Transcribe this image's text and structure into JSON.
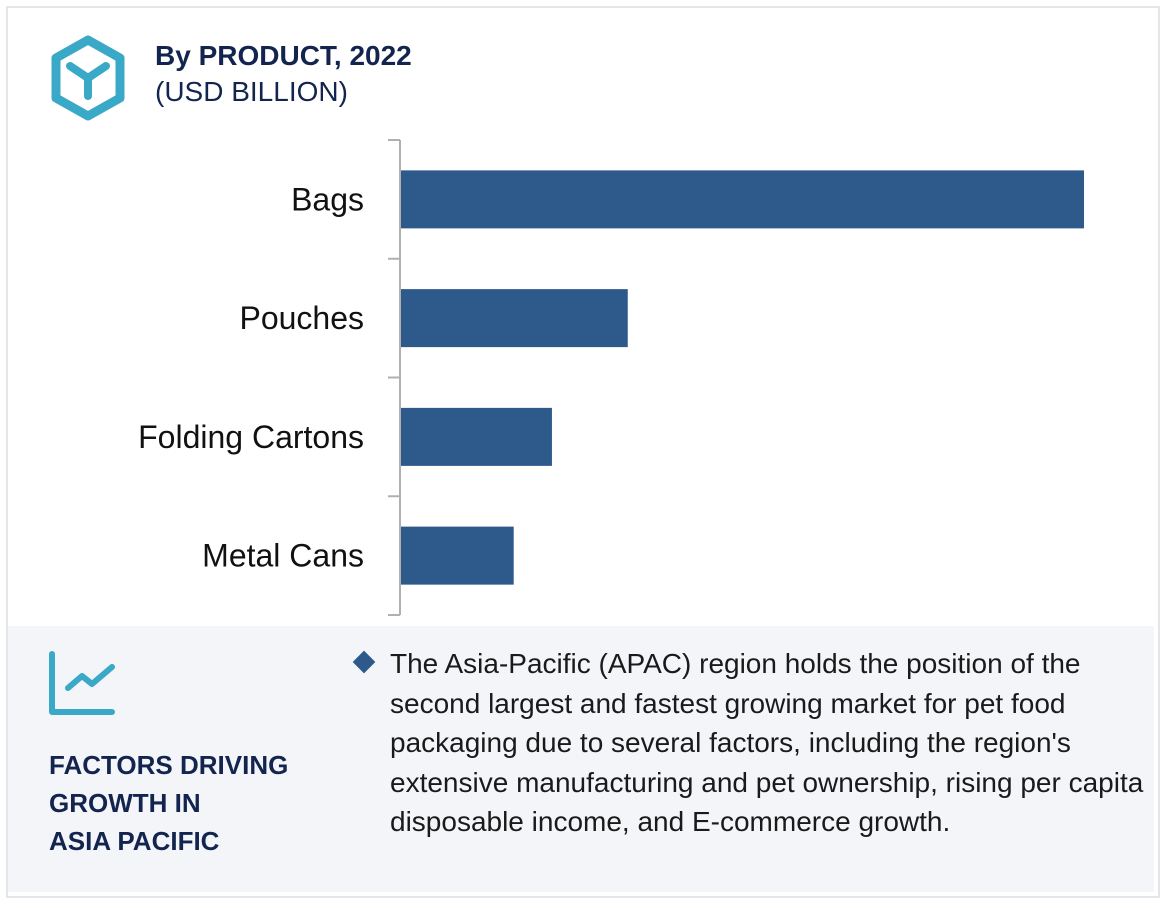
{
  "header": {
    "title": "By PRODUCT, 2022",
    "subtitle": "(USD BILLION)",
    "icon": "cube-icon"
  },
  "chart_data": {
    "type": "bar",
    "orientation": "horizontal",
    "title": "By PRODUCT, 2022",
    "ylabel": "(USD BILLION)",
    "categories": [
      "Bags",
      "Pouches",
      "Folding Cartons",
      "Metal Cans"
    ],
    "values": [
      100,
      33.2,
      22.1,
      16.5
    ],
    "value_note_scale": "relative (Bags = 100), no values printed",
    "xlim": [
      0,
      100
    ],
    "grid": false,
    "bar_color": "#2d5a8a"
  },
  "factors": {
    "icon": "trend-chart-icon",
    "heading_lines": [
      "FACTORS DRIVING",
      "GROWTH IN",
      "ASIA PACIFIC"
    ],
    "text": "The Asia-Pacific (APAC) region holds the position of the second largest and fastest growing market for pet food packaging due to several factors, including the region's extensive manufacturing and pet ownership, rising per capita disposable income, and E-commerce growth."
  }
}
